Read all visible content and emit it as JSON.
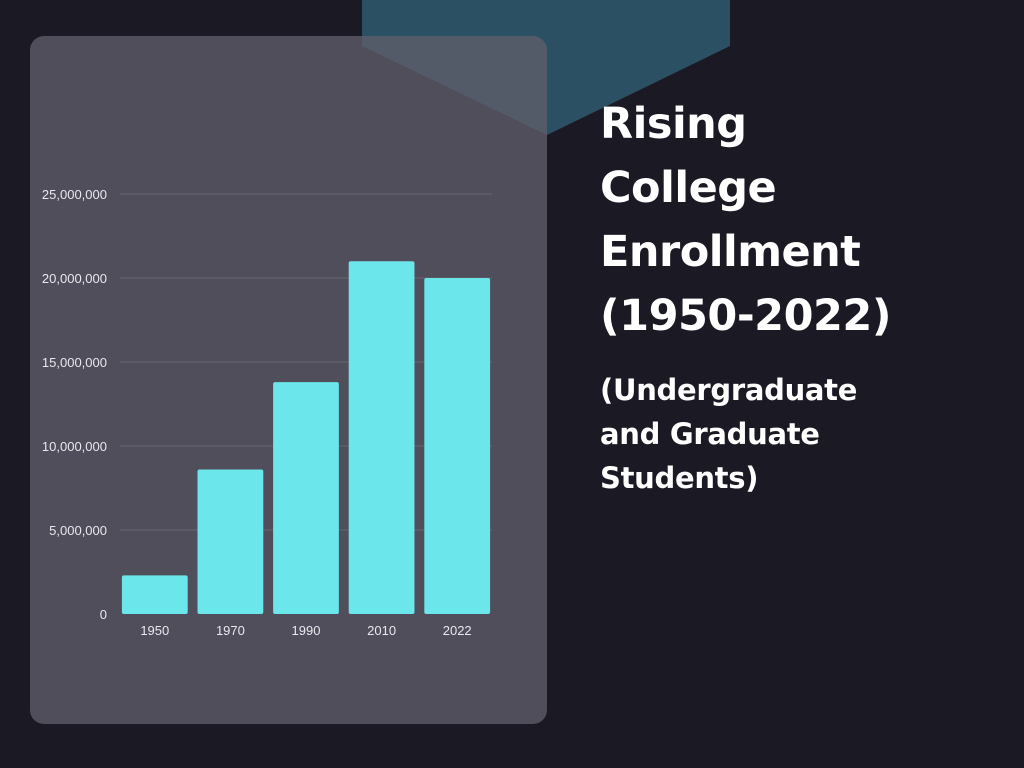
{
  "colors": {
    "background": "#1b1a24",
    "panel": "#5f5d69",
    "bar": "#6be6ea",
    "accent_shape": "#2e5a6e",
    "text": "#ffffff"
  },
  "chart_data": {
    "type": "bar",
    "title": "Rising College Enrollment (1950-2022)",
    "subtitle": "(Undergraduate and Graduate Students)",
    "xlabel": "",
    "ylabel": "",
    "categories": [
      "1950",
      "1970",
      "1990",
      "2010",
      "2022"
    ],
    "values": [
      2300000,
      8600000,
      13800000,
      21000000,
      20000000
    ],
    "ylim": [
      0,
      25000000
    ],
    "yticks": [
      0,
      5000000,
      10000000,
      15000000,
      20000000,
      25000000
    ],
    "ytick_labels": [
      "0",
      "5,000,000",
      "10,000,000",
      "15,000,000",
      "20,000,000",
      "25,000,000"
    ],
    "grid": true,
    "legend": "none"
  }
}
